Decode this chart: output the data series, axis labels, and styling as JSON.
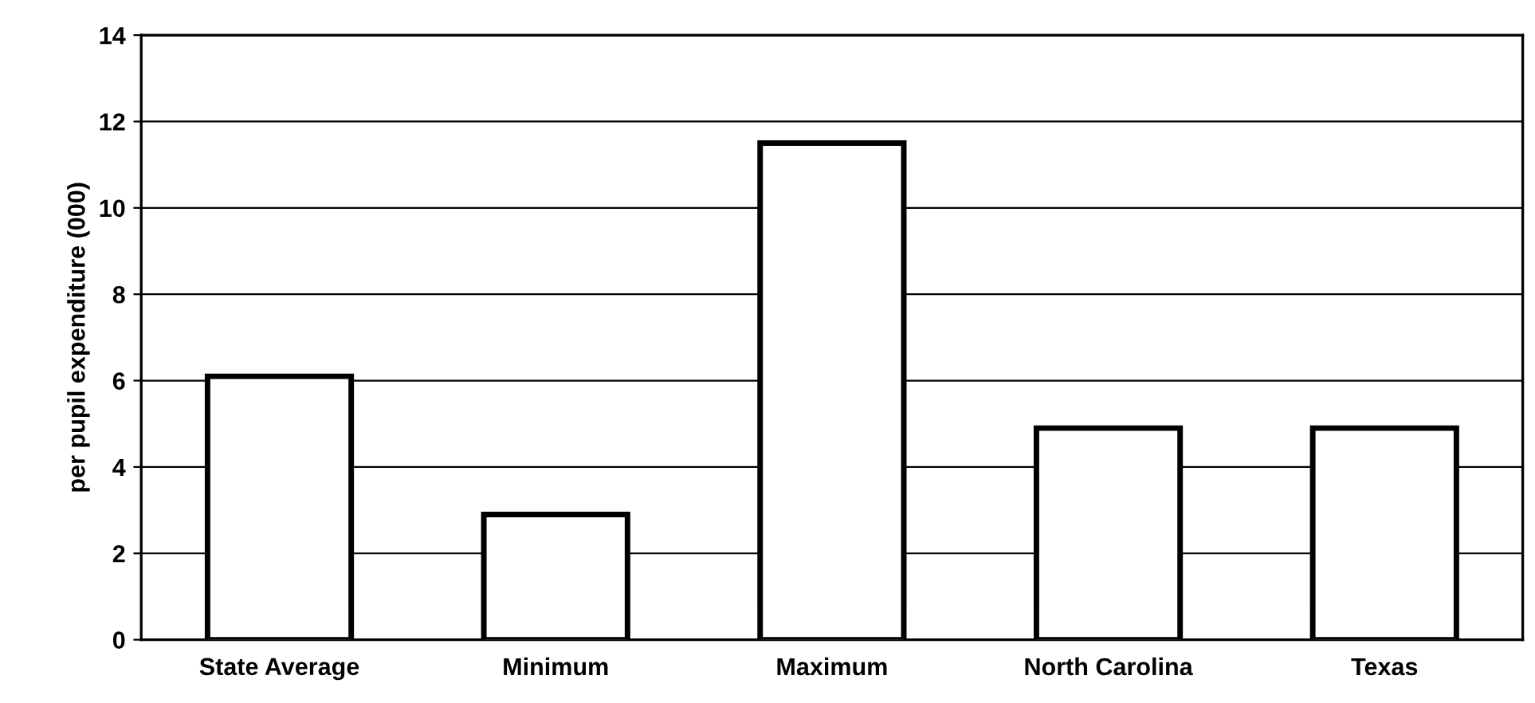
{
  "chart_data": {
    "type": "bar",
    "ylabel": "per pupil expenditure (000)",
    "categories": [
      "State Average",
      "Minimum",
      "Maximum",
      "North Carolina",
      "Texas"
    ],
    "values": [
      6.1,
      2.9,
      11.5,
      4.9,
      4.9
    ],
    "color": "#ffffff",
    "ylim": [
      0,
      14
    ],
    "yticks": [
      0,
      2,
      4,
      6,
      8,
      10,
      12,
      14
    ],
    "grid": "y"
  }
}
